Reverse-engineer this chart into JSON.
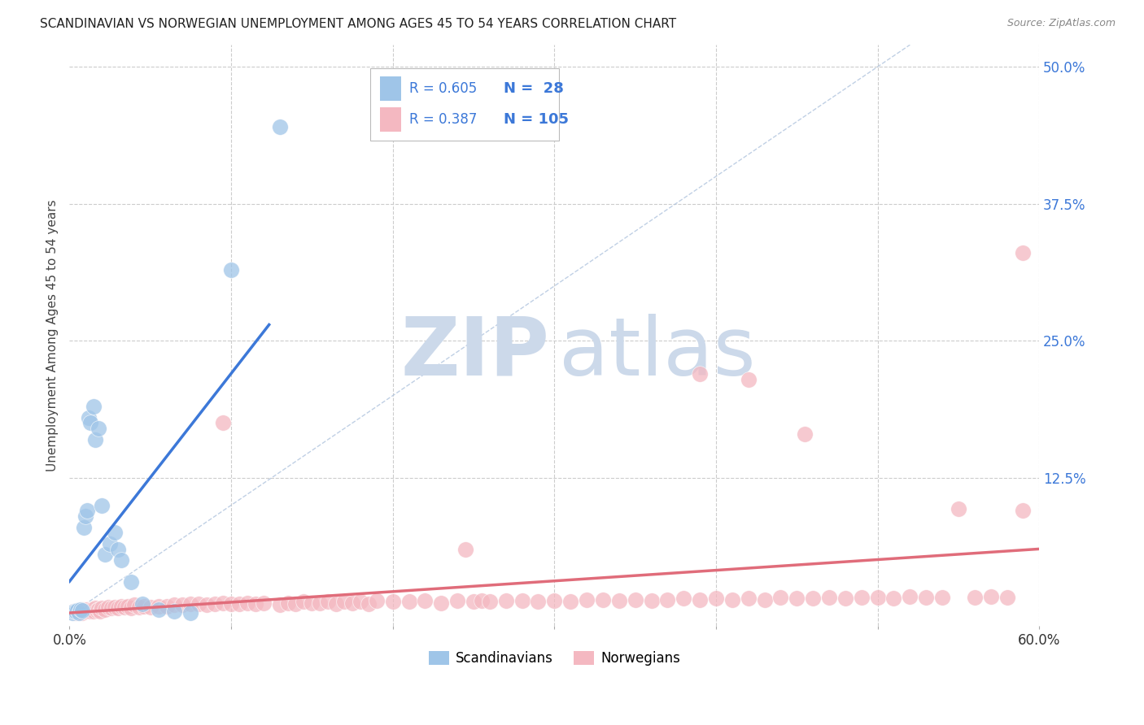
{
  "title": "SCANDINAVIAN VS NORWEGIAN UNEMPLOYMENT AMONG AGES 45 TO 54 YEARS CORRELATION CHART",
  "source": "Source: ZipAtlas.com",
  "ylabel": "Unemployment Among Ages 45 to 54 years",
  "xlim": [
    0.0,
    0.6
  ],
  "ylim": [
    -0.01,
    0.52
  ],
  "scandinavians_R": 0.605,
  "scandinavians_N": 28,
  "norwegians_R": 0.387,
  "norwegians_N": 105,
  "blue_scatter_color": "#9fc5e8",
  "pink_scatter_color": "#f4b8c1",
  "blue_line_color": "#3c78d8",
  "pink_line_color": "#e06c7a",
  "grid_color": "#cccccc",
  "legend_color": "#3c78d8",
  "diag_color": "#b0c4de",
  "scandinavians_x": [
    0.002,
    0.003,
    0.004,
    0.005,
    0.006,
    0.007,
    0.008,
    0.009,
    0.01,
    0.011,
    0.012,
    0.013,
    0.015,
    0.016,
    0.018,
    0.02,
    0.022,
    0.025,
    0.028,
    0.03,
    0.032,
    0.038,
    0.045,
    0.055,
    0.065,
    0.075,
    0.1,
    0.13
  ],
  "scandinavians_y": [
    0.002,
    0.003,
    0.003,
    0.004,
    0.002,
    0.005,
    0.004,
    0.08,
    0.09,
    0.095,
    0.18,
    0.175,
    0.19,
    0.16,
    0.17,
    0.1,
    0.055,
    0.065,
    0.075,
    0.06,
    0.05,
    0.03,
    0.01,
    0.005,
    0.003,
    0.002,
    0.315,
    0.445
  ],
  "norwegians_x": [
    0.003,
    0.004,
    0.005,
    0.006,
    0.007,
    0.008,
    0.009,
    0.01,
    0.011,
    0.012,
    0.013,
    0.014,
    0.015,
    0.016,
    0.017,
    0.018,
    0.019,
    0.02,
    0.022,
    0.024,
    0.026,
    0.028,
    0.03,
    0.032,
    0.034,
    0.036,
    0.038,
    0.04,
    0.043,
    0.046,
    0.05,
    0.055,
    0.06,
    0.065,
    0.07,
    0.075,
    0.08,
    0.085,
    0.09,
    0.095,
    0.1,
    0.105,
    0.11,
    0.115,
    0.12,
    0.13,
    0.135,
    0.14,
    0.145,
    0.15,
    0.155,
    0.16,
    0.165,
    0.17,
    0.175,
    0.18,
    0.185,
    0.19,
    0.2,
    0.21,
    0.22,
    0.23,
    0.24,
    0.245,
    0.25,
    0.255,
    0.26,
    0.27,
    0.28,
    0.29,
    0.3,
    0.31,
    0.32,
    0.33,
    0.34,
    0.35,
    0.36,
    0.37,
    0.38,
    0.39,
    0.4,
    0.41,
    0.42,
    0.43,
    0.44,
    0.45,
    0.46,
    0.47,
    0.48,
    0.49,
    0.5,
    0.51,
    0.52,
    0.53,
    0.54,
    0.55,
    0.56,
    0.57,
    0.58,
    0.59,
    0.095,
    0.39,
    0.42,
    0.455,
    0.59
  ],
  "norwegians_y": [
    0.003,
    0.002,
    0.004,
    0.003,
    0.004,
    0.002,
    0.005,
    0.003,
    0.005,
    0.004,
    0.003,
    0.005,
    0.003,
    0.006,
    0.004,
    0.005,
    0.003,
    0.006,
    0.005,
    0.007,
    0.006,
    0.007,
    0.006,
    0.008,
    0.007,
    0.008,
    0.006,
    0.009,
    0.007,
    0.008,
    0.007,
    0.008,
    0.008,
    0.009,
    0.009,
    0.01,
    0.01,
    0.009,
    0.01,
    0.011,
    0.01,
    0.01,
    0.011,
    0.01,
    0.011,
    0.009,
    0.011,
    0.01,
    0.012,
    0.011,
    0.011,
    0.012,
    0.01,
    0.012,
    0.011,
    0.012,
    0.01,
    0.013,
    0.012,
    0.012,
    0.013,
    0.011,
    0.013,
    0.06,
    0.012,
    0.013,
    0.012,
    0.013,
    0.013,
    0.012,
    0.013,
    0.012,
    0.014,
    0.014,
    0.013,
    0.014,
    0.013,
    0.014,
    0.015,
    0.014,
    0.015,
    0.014,
    0.015,
    0.014,
    0.016,
    0.015,
    0.015,
    0.016,
    0.015,
    0.016,
    0.016,
    0.015,
    0.017,
    0.016,
    0.016,
    0.097,
    0.016,
    0.017,
    0.016,
    0.095,
    0.175,
    0.22,
    0.215,
    0.165,
    0.33
  ]
}
